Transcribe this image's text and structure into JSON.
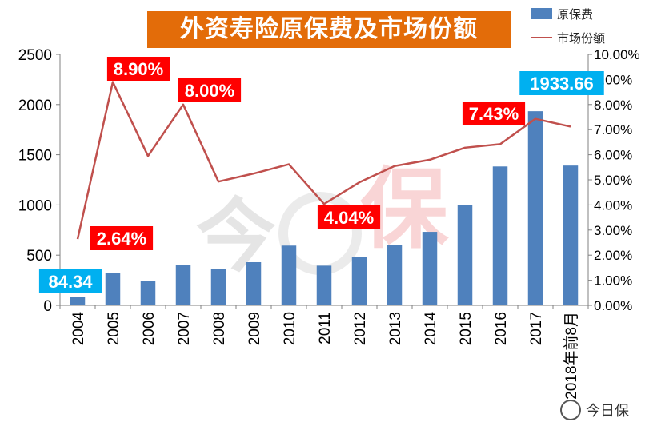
{
  "title": "外资寿险原保费及市场份额",
  "legend": {
    "bar_label": "原保费",
    "line_label": "市场份额"
  },
  "watermark": {
    "logo_text": "今日保",
    "badge_text": "今日保"
  },
  "colors": {
    "bar": "#4f81bd",
    "line": "#c0504d",
    "title_bg": "#e36c09",
    "callout_red": "#ff0000",
    "callout_blue": "#00b0f0"
  },
  "chart_data": {
    "type": "bar",
    "categories": [
      "2004",
      "2005",
      "2006",
      "2007",
      "2008",
      "2009",
      "2010",
      "2011",
      "2012",
      "2013",
      "2014",
      "2015",
      "2016",
      "2017",
      "2018年前8月"
    ],
    "series": [
      {
        "name": "原保费",
        "type": "bar",
        "axis": "left",
        "values": [
          84.34,
          325,
          240,
          398,
          360,
          430,
          595,
          395,
          480,
          600,
          732,
          1000,
          1383,
          1933.66,
          1392
        ]
      },
      {
        "name": "市场份额",
        "type": "line",
        "axis": "right",
        "values": [
          2.64,
          8.9,
          5.95,
          8.0,
          4.93,
          5.25,
          5.62,
          4.04,
          4.9,
          5.55,
          5.8,
          6.28,
          6.42,
          7.43,
          7.12
        ]
      }
    ],
    "y_left": {
      "min": 0,
      "max": 2500,
      "ticks": [
        "0",
        "500",
        "1000",
        "1500",
        "2000",
        "2500"
      ]
    },
    "y_right": {
      "min": 0,
      "max": 10,
      "ticks": [
        "0.00%",
        "1.00%",
        "2.00%",
        "3.00%",
        "4.00%",
        "5.00%",
        "6.00%",
        "7.00%",
        "8.00%",
        "9.00%",
        "10.00%"
      ]
    },
    "annotations": [
      {
        "text": "84.34",
        "style": "blue",
        "series": 0,
        "index": 0
      },
      {
        "text": "2.64%",
        "style": "red",
        "series": 1,
        "index": 0
      },
      {
        "text": "8.90%",
        "style": "red",
        "series": 1,
        "index": 1
      },
      {
        "text": "8.00%",
        "style": "red",
        "series": 1,
        "index": 3
      },
      {
        "text": "4.04%",
        "style": "red",
        "series": 1,
        "index": 7
      },
      {
        "text": "7.43%",
        "style": "red",
        "series": 1,
        "index": 13
      },
      {
        "text": "1933.66",
        "style": "blue",
        "series": 0,
        "index": 13
      }
    ],
    "grid": false,
    "legend_position": "top-right"
  }
}
